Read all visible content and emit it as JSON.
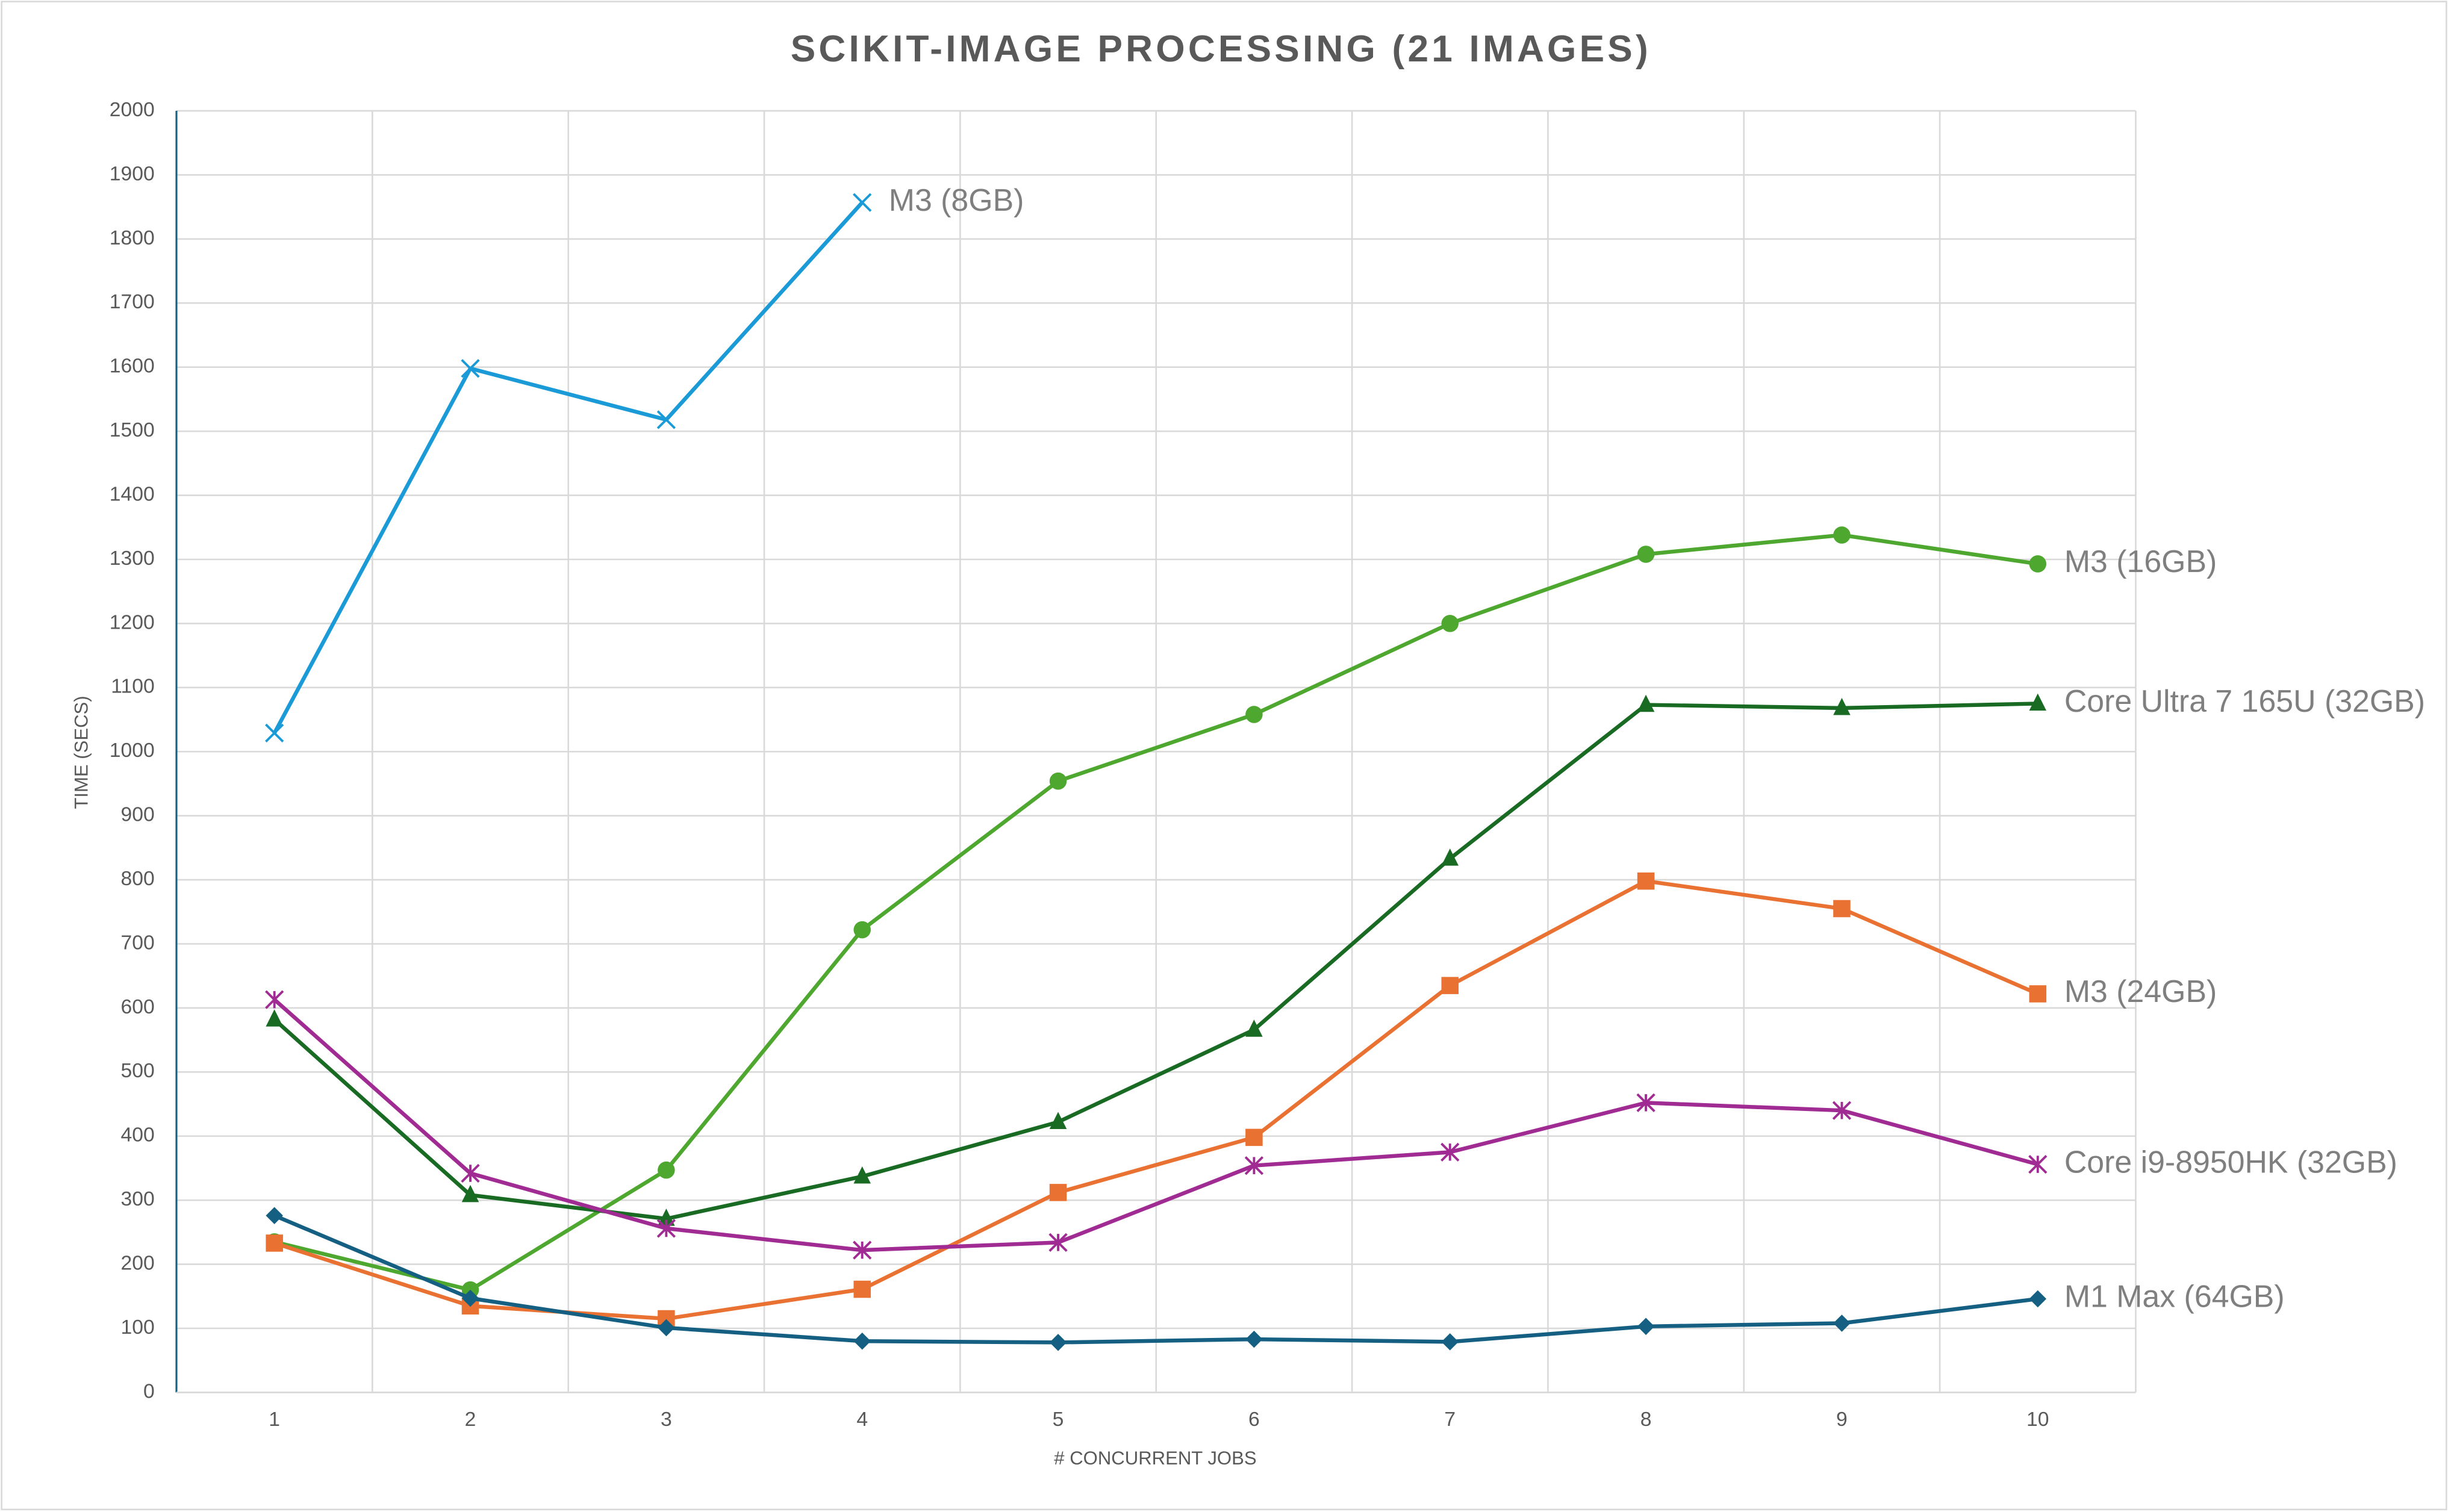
{
  "chart_data": {
    "type": "line",
    "title": "SCIKIT-IMAGE PROCESSING (21 IMAGES)",
    "x_label": "# CONCURRENT JOBS",
    "y_label": "TIME (SECS)",
    "categories": [
      "1",
      "2",
      "3",
      "4",
      "5",
      "6",
      "7",
      "8",
      "9",
      "10"
    ],
    "ylim": [
      0,
      2000
    ],
    "yticks": [
      0,
      100,
      200,
      300,
      400,
      500,
      600,
      700,
      800,
      900,
      1000,
      1100,
      1200,
      1300,
      1400,
      1500,
      1600,
      1700,
      1800,
      1900,
      2000
    ],
    "grid": true,
    "series": [
      {
        "name": "M3 (8GB)",
        "color": "#1a9ad6",
        "marker": "x",
        "values": [
          1029,
          1598,
          1518,
          1857,
          null,
          null,
          null,
          null,
          null,
          null
        ]
      },
      {
        "name": "M3 (16GB)",
        "color": "#4ea72e",
        "marker": "circle",
        "values": [
          235,
          160,
          347,
          722,
          954,
          1058,
          1200,
          1308,
          1338,
          1293
        ]
      },
      {
        "name": "Core Ultra 7 165U (32GB)",
        "color": "#196b24",
        "marker": "triangle",
        "values": [
          582,
          308,
          271,
          337,
          422,
          566,
          833,
          1073,
          1068,
          1075
        ]
      },
      {
        "name": "M3 (24GB)",
        "color": "#e97132",
        "marker": "square",
        "values": [
          233,
          135,
          115,
          161,
          312,
          398,
          635,
          798,
          755,
          622
        ]
      },
      {
        "name": "Core i9-8950HK (32GB)",
        "color": "#a02b93",
        "marker": "star",
        "values": [
          613,
          342,
          256,
          222,
          234,
          354,
          375,
          452,
          440,
          356
        ]
      },
      {
        "name": "M1 Max (64GB)",
        "color": "#156082",
        "marker": "diamond",
        "values": [
          276,
          147,
          101,
          80,
          78,
          83,
          79,
          103,
          108,
          146
        ]
      }
    ]
  }
}
